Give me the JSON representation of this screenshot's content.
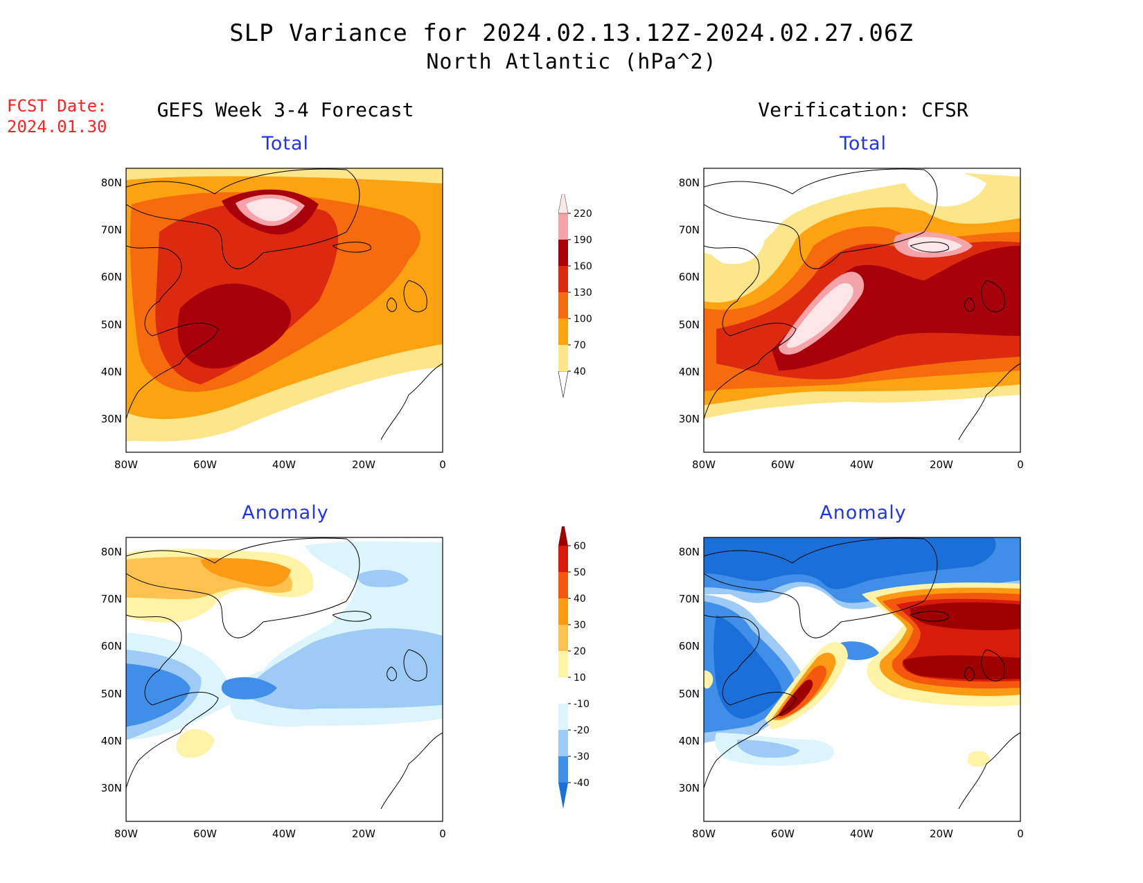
{
  "header": {
    "title_line1": "SLP Variance for 2024.02.13.12Z-2024.02.27.06Z",
    "title_line2": "North Atlantic (hPa^2)",
    "fcst_label": "FCST Date:",
    "fcst_date": "2024.01.30"
  },
  "columns": {
    "left_title": "GEFS Week 3-4 Forecast",
    "right_title": "Verification: CFSR"
  },
  "panels": {
    "total_label": "Total",
    "anomaly_label": "Anomaly"
  },
  "axes": {
    "lon_ticks": [
      "80W",
      "60W",
      "40W",
      "20W",
      "0"
    ],
    "lat_ticks": [
      "80N",
      "70N",
      "60N",
      "50N",
      "40N",
      "30N"
    ]
  },
  "colorbar_total": {
    "levels": [
      "40",
      "70",
      "100",
      "130",
      "160",
      "190",
      "220"
    ],
    "colors": [
      "#fde68a",
      "#fca311",
      "#f66b0e",
      "#dc2a10",
      "#a8000a",
      "#f4a3a8",
      "#fde6e8"
    ]
  },
  "colorbar_anomaly": {
    "levels": [
      "-40",
      "-30",
      "-20",
      "-10",
      "10",
      "20",
      "30",
      "40",
      "50",
      "60"
    ],
    "colors": [
      "#1b6fd8",
      "#3f8fe8",
      "#9ecbf5",
      "#dcf4fc",
      "#ffffff",
      "#fef3a6",
      "#fdc14f",
      "#fb9a13",
      "#f4580e",
      "#d81c0c",
      "#9e0000"
    ]
  },
  "chart_data": [
    {
      "type": "heatmap",
      "title": "Total",
      "variable": "SLP variance (hPa^2)",
      "source": "GEFS Week 3-4 Forecast",
      "xlim": [
        -80,
        0
      ],
      "ylim": [
        25,
        85
      ],
      "max_region": [
        [
          -45,
          75
        ],
        [
          -52,
          52
        ]
      ]
    },
    {
      "type": "heatmap",
      "title": "Total",
      "variable": "SLP variance (hPa^2)",
      "source": "Verification: CFSR",
      "xlim": [
        -80,
        0
      ],
      "ylim": [
        25,
        85
      ],
      "max_region": [
        [
          -45,
          47
        ],
        [
          -12,
          65
        ]
      ]
    },
    {
      "type": "heatmap",
      "title": "Anomaly",
      "variable": "SLP variance anomaly (hPa^2)",
      "source": "GEFS Week 3-4 Forecast",
      "xlim": [
        -80,
        0
      ],
      "ylim": [
        25,
        85
      ]
    },
    {
      "type": "heatmap",
      "title": "Anomaly",
      "variable": "SLP variance anomaly (hPa^2)",
      "source": "Verification: CFSR",
      "xlim": [
        -80,
        0
      ],
      "ylim": [
        25,
        85
      ]
    }
  ]
}
